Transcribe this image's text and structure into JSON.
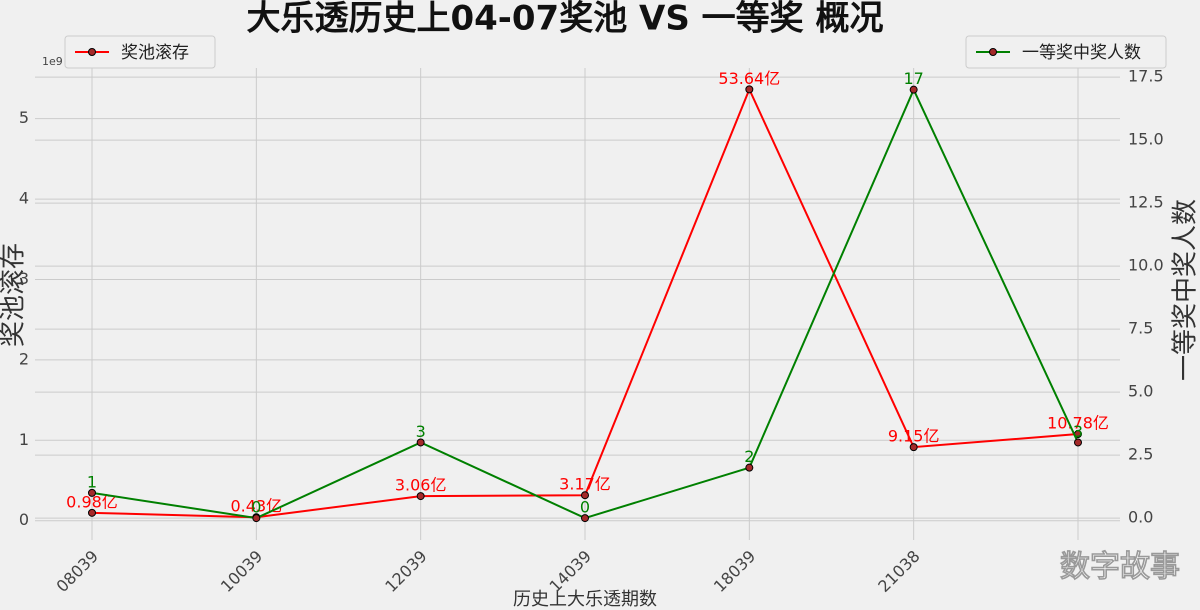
{
  "chart_data": {
    "type": "line",
    "title": "大乐透历史上04-07奖池 VS 一等奖 概况",
    "xlabel": "历史上大乐透期数",
    "ylabel": "奖池滚存",
    "y2label": "一等奖中奖人数",
    "y_offset_label": "1e9",
    "watermark": "数字故事",
    "categories": [
      "08039",
      "10039",
      "12039",
      "14039",
      "18039",
      "21038",
      null
    ],
    "series": [
      {
        "name": "奖池滚存",
        "color": "#ff0000",
        "axis": "y",
        "legend": "upper left",
        "values": [
          0.098,
          0.043,
          0.306,
          0.317,
          5.364,
          0.915,
          1.078
        ],
        "value_labels": [
          "0.98亿",
          "0.43亿",
          "3.06亿",
          "3.17亿",
          "53.64亿",
          "9.15亿",
          "10.78亿"
        ]
      },
      {
        "name": "一等奖中奖人数",
        "color": "#008000",
        "axis": "y2",
        "legend": "upper right",
        "values": [
          1,
          0,
          3,
          0,
          2,
          17,
          3
        ]
      }
    ],
    "ylim": [
      -0.24,
      5.63
    ],
    "yticks": [
      0,
      1,
      2,
      3,
      4,
      5
    ],
    "y2lim": [
      -0.87,
      17.86
    ],
    "y2ticks": [
      {
        "value": 0,
        "label": "0.0"
      },
      {
        "value": 2.5,
        "label": "2.5"
      },
      {
        "value": 5,
        "label": "5.0"
      },
      {
        "value": 7.5,
        "label": "7.5"
      },
      {
        "value": 10,
        "label": "10.0"
      },
      {
        "value": 12.5,
        "label": "12.5"
      },
      {
        "value": 15,
        "label": "15.0"
      },
      {
        "value": 17.5,
        "label": "17.5"
      }
    ],
    "grid": true
  }
}
